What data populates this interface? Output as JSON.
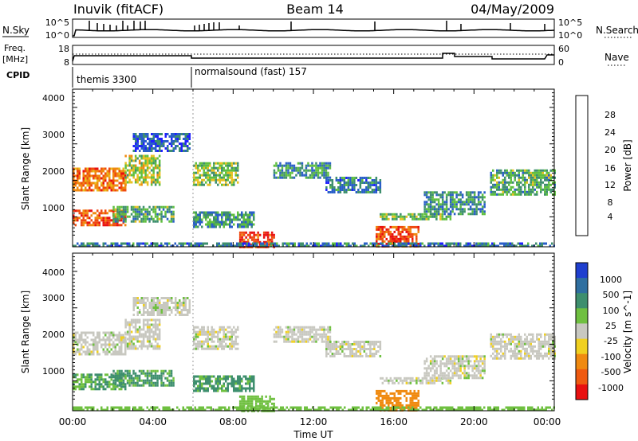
{
  "header": {
    "station": "Inuvik (fitACF)",
    "beam": "Beam 14",
    "date": "04/May/2009"
  },
  "nsky_panel": {
    "left_label": "N.Sky",
    "left_ticks": [
      "10^5",
      "10^0"
    ],
    "right_label": "N.Search",
    "right_ticks": [
      "10^5",
      "10^0"
    ]
  },
  "freq_panel": {
    "left_label_top": "Freq.",
    "left_label_unit": "[MHz]",
    "left_ticks": [
      "18",
      "8"
    ],
    "right_label": "Nave",
    "right_ticks": [
      "60",
      "0"
    ]
  },
  "cpid_panel": {
    "label": "CPID",
    "segments": [
      {
        "name": "themis 3300",
        "start_hour": 0
      },
      {
        "name": "normalsound (fast) 157",
        "start_hour": 6
      }
    ]
  },
  "axes": {
    "x_label": "Time UT",
    "x_ticks": [
      "00:00",
      "04:00",
      "08:00",
      "12:00",
      "16:00",
      "20:00",
      "00:00"
    ],
    "y_label": "Slant Range [km]",
    "y_ticks": [
      "1000",
      "2000",
      "3000",
      "4000"
    ]
  },
  "colorbars": {
    "power": {
      "label": "Power [dB]",
      "ticks": [
        "4",
        "8",
        "12",
        "16",
        "20",
        "24",
        "28"
      ],
      "colors": [
        "#1f1fff",
        "#2a5fc8",
        "#3e8f6e",
        "#5fbf3f",
        "#e7c020",
        "#f08a10",
        "#ef4a10",
        "#e81010"
      ]
    },
    "velocity": {
      "label": "Velocity [m s^-1]",
      "ticks": [
        "1000",
        "500",
        "100",
        "25",
        "-25",
        "-100",
        "-500",
        "-1000"
      ],
      "colors": [
        "#1f3fcf",
        "#2f6fa0",
        "#3e8f6e",
        "#6fc040",
        "#c8c8c0",
        "#f0d020",
        "#f08a10",
        "#ef5a10",
        "#e81010"
      ]
    }
  },
  "chart_data": [
    {
      "type": "heatmap",
      "title": "Power",
      "xlabel": "Time UT",
      "ylabel": "Slant Range [km]",
      "xlim": [
        0,
        24
      ],
      "ylim": [
        180,
        4500
      ],
      "colorbar_label": "Power [dB]",
      "regions": [
        {
          "t0": 0.0,
          "t1": 2.6,
          "r0": 1700,
          "r1": 2350,
          "value": 24
        },
        {
          "t0": 0.0,
          "t1": 2.6,
          "r0": 750,
          "r1": 1200,
          "value": 26
        },
        {
          "t0": 2.6,
          "t1": 4.3,
          "r0": 1900,
          "r1": 2700,
          "value": 16
        },
        {
          "t0": 3.0,
          "t1": 5.8,
          "r0": 2800,
          "r1": 3300,
          "value": 6
        },
        {
          "t0": 2.0,
          "t1": 5.0,
          "r0": 900,
          "r1": 1300,
          "value": 12
        },
        {
          "t0": 6.0,
          "t1": 8.2,
          "r0": 1900,
          "r1": 2500,
          "value": 14
        },
        {
          "t0": 6.0,
          "t1": 9.0,
          "r0": 700,
          "r1": 1150,
          "value": 10
        },
        {
          "t0": 8.3,
          "t1": 10.0,
          "r0": 200,
          "r1": 600,
          "value": 28
        },
        {
          "t0": 10.0,
          "t1": 12.8,
          "r0": 2050,
          "r1": 2500,
          "value": 10
        },
        {
          "t0": 12.6,
          "t1": 15.3,
          "r0": 1700,
          "r1": 2100,
          "value": 8
        },
        {
          "t0": 15.1,
          "t1": 17.2,
          "r0": 200,
          "r1": 750,
          "value": 26
        },
        {
          "t0": 15.3,
          "t1": 18.8,
          "r0": 950,
          "r1": 1100,
          "value": 14
        },
        {
          "t0": 17.5,
          "t1": 20.5,
          "r0": 1100,
          "r1": 1700,
          "value": 10
        },
        {
          "t0": 20.8,
          "t1": 24.0,
          "r0": 1600,
          "r1": 2300,
          "value": 12
        },
        {
          "t0": 0.0,
          "t1": 24.0,
          "r0": 180,
          "r1": 300,
          "value": 8
        }
      ]
    },
    {
      "type": "heatmap",
      "title": "Velocity",
      "xlabel": "Time UT",
      "ylabel": "Slant Range [km]",
      "xlim": [
        0,
        24
      ],
      "ylim": [
        180,
        4500
      ],
      "colorbar_label": "Velocity [m s^-1]",
      "regions": [
        {
          "t0": 0.0,
          "t1": 2.6,
          "r0": 1700,
          "r1": 2350,
          "value": 0
        },
        {
          "t0": 0.0,
          "t1": 2.6,
          "r0": 750,
          "r1": 1200,
          "value": 100
        },
        {
          "t0": 2.6,
          "t1": 4.3,
          "r0": 1900,
          "r1": 2700,
          "value": 0
        },
        {
          "t0": 3.0,
          "t1": 5.8,
          "r0": 2800,
          "r1": 3300,
          "value": 0
        },
        {
          "t0": 2.0,
          "t1": 5.0,
          "r0": 900,
          "r1": 1300,
          "value": 150
        },
        {
          "t0": 6.0,
          "t1": 8.2,
          "r0": 1900,
          "r1": 2500,
          "value": 0
        },
        {
          "t0": 6.0,
          "t1": 9.0,
          "r0": 700,
          "r1": 1150,
          "value": 200
        },
        {
          "t0": 8.3,
          "t1": 10.0,
          "r0": 200,
          "r1": 600,
          "value": 60
        },
        {
          "t0": 10.0,
          "t1": 12.8,
          "r0": 2050,
          "r1": 2500,
          "value": 0
        },
        {
          "t0": 12.6,
          "t1": 15.3,
          "r0": 1700,
          "r1": 2100,
          "value": 0
        },
        {
          "t0": 15.1,
          "t1": 17.2,
          "r0": 200,
          "r1": 750,
          "value": -300
        },
        {
          "t0": 15.3,
          "t1": 18.8,
          "r0": 950,
          "r1": 1100,
          "value": 0
        },
        {
          "t0": 17.5,
          "t1": 20.5,
          "r0": 1100,
          "r1": 1700,
          "value": 0
        },
        {
          "t0": 20.8,
          "t1": 24.0,
          "r0": 1600,
          "r1": 2300,
          "value": 0
        },
        {
          "t0": 0.0,
          "t1": 24.0,
          "r0": 180,
          "r1": 300,
          "value": 60
        }
      ]
    }
  ]
}
